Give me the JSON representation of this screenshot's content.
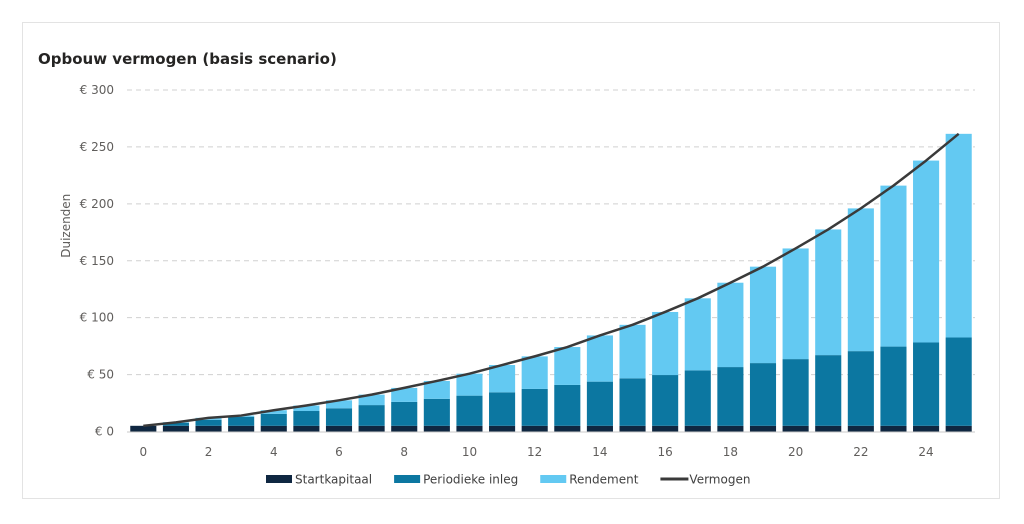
{
  "chart_data": {
    "type": "bar",
    "stacked": true,
    "title": "Opbouw vermogen (basis scenario)",
    "xlabel": "",
    "ylabel": "Duizenden",
    "ylim": [
      0,
      300
    ],
    "yticks": [
      0,
      50,
      100,
      150,
      200,
      250,
      300
    ],
    "ytick_labels": [
      "€ 0",
      "€ 50",
      "€ 100",
      "€ 150",
      "€ 200",
      "€ 250",
      "€ 300"
    ],
    "xtick_labels": [
      "0",
      "2",
      "4",
      "6",
      "8",
      "10",
      "12",
      "14",
      "16",
      "18",
      "20",
      "22",
      "24"
    ],
    "grid": true,
    "legend_position": "bottom",
    "categories": [
      0,
      1,
      2,
      3,
      4,
      5,
      6,
      7,
      8,
      9,
      10,
      11,
      12,
      13,
      14,
      15,
      16,
      17,
      18,
      19,
      20,
      21,
      22,
      23,
      24,
      25
    ],
    "series": [
      {
        "name": "Startkapitaal",
        "type": "bar",
        "color": "#0f2741",
        "values": [
          5,
          5,
          5,
          5,
          5,
          5,
          5,
          5,
          5,
          5,
          5,
          5,
          5,
          5,
          5,
          5,
          5,
          5,
          5,
          5,
          5,
          5,
          5,
          5,
          5,
          5
        ]
      },
      {
        "name": "Periodieke inleg",
        "type": "bar",
        "color": "#0c77a1",
        "values": [
          0,
          2.7,
          5.3,
          7.9,
          10.5,
          13,
          15.4,
          18.2,
          21,
          23.7,
          26.5,
          29.4,
          32.4,
          35.9,
          38.8,
          41.7,
          44.6,
          48.7,
          51.6,
          55.1,
          58.6,
          62.1,
          65.6,
          69.6,
          73.2,
          77.6
        ]
      },
      {
        "name": "Rendement",
        "type": "bar",
        "color": "#63c9f2",
        "values": [
          0,
          0.5,
          1.7,
          1.1,
          3.2,
          4.8,
          7,
          9.2,
          12.3,
          15.7,
          19.3,
          24,
          28.6,
          33.3,
          40.6,
          47,
          55.4,
          63.3,
          74.1,
          84.7,
          97.2,
          110.4,
          125.4,
          141.4,
          159.8,
          178.9
        ]
      },
      {
        "name": "Vermogen",
        "type": "line",
        "color": "#3a3a3a",
        "values": [
          5,
          8,
          12,
          14,
          18.7,
          22.8,
          27.4,
          32.4,
          38.3,
          44.4,
          50.8,
          58.4,
          66,
          74.2,
          84.4,
          93.7,
          105,
          117,
          130.7,
          144.8,
          160.8,
          177.5,
          196,
          216,
          238,
          261.5
        ]
      }
    ]
  }
}
